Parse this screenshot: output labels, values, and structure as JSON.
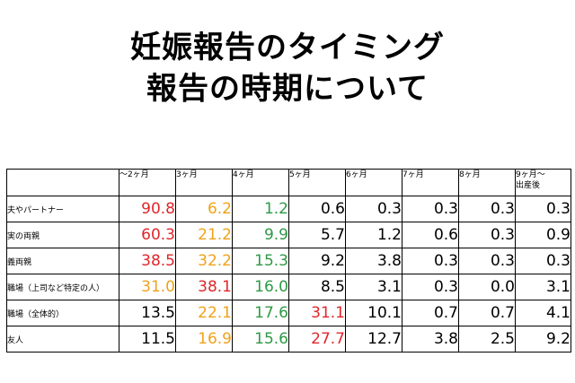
{
  "title": {
    "line1": "妊娠報告のタイミング",
    "line2": "報告の時期について"
  },
  "colors": {
    "red": "#e0262b",
    "orange": "#f0a21a",
    "green": "#2e9a45",
    "black": "#000000"
  },
  "table": {
    "columns": [
      "",
      "～2ヶ月",
      "3ヶ月",
      "4ヶ月",
      "5ヶ月",
      "6ヶ月",
      "7ヶ月",
      "8ヶ月",
      "9ヶ月～\n出産後"
    ],
    "rows": [
      {
        "label": "夫やパートナー",
        "values": [
          "90.8",
          "6.2",
          "1.2",
          "0.6",
          "0.3",
          "0.3",
          "0.3",
          "0.3"
        ],
        "colors": [
          "red",
          "orange",
          "green",
          "black",
          "black",
          "black",
          "black",
          "black"
        ]
      },
      {
        "label": "実の両親",
        "values": [
          "60.3",
          "21.2",
          "9.9",
          "5.7",
          "1.2",
          "0.6",
          "0.3",
          "0.9"
        ],
        "colors": [
          "red",
          "orange",
          "green",
          "black",
          "black",
          "black",
          "black",
          "black"
        ]
      },
      {
        "label": "義両親",
        "values": [
          "38.5",
          "32.2",
          "15.3",
          "9.2",
          "3.8",
          "0.3",
          "0.3",
          "0.3"
        ],
        "colors": [
          "red",
          "orange",
          "green",
          "black",
          "black",
          "black",
          "black",
          "black"
        ]
      },
      {
        "label": "職場（上司など特定の人）",
        "values": [
          "31.0",
          "38.1",
          "16.0",
          "8.5",
          "3.1",
          "0.3",
          "0.0",
          "3.1"
        ],
        "colors": [
          "orange",
          "red",
          "green",
          "black",
          "black",
          "black",
          "black",
          "black"
        ]
      },
      {
        "label": "職場（全体的）",
        "values": [
          "13.5",
          "22.1",
          "17.6",
          "31.1",
          "10.1",
          "0.7",
          "0.7",
          "4.1"
        ],
        "colors": [
          "black",
          "orange",
          "green",
          "red",
          "black",
          "black",
          "black",
          "black"
        ]
      },
      {
        "label": "友人",
        "values": [
          "11.5",
          "16.9",
          "15.6",
          "27.7",
          "12.7",
          "3.8",
          "2.5",
          "9.2"
        ],
        "colors": [
          "black",
          "orange",
          "green",
          "red",
          "black",
          "black",
          "black",
          "black"
        ]
      }
    ]
  }
}
